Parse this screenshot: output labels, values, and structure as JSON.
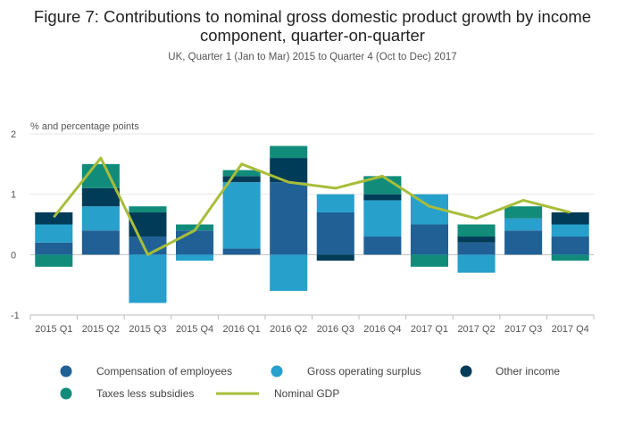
{
  "chart_data": {
    "type": "bar",
    "title": "Figure 7: Contributions to nominal gross domestic product growth by income component, quarter-on-quarter",
    "subtitle": "UK, Quarter 1 (Jan to Mar) 2015 to Quarter 4 (Oct to Dec) 2017",
    "ylabel": "% and percentage points",
    "ylim": [
      -1,
      2
    ],
    "yticks": [
      "2",
      "1",
      "0",
      "-1"
    ],
    "grid": true,
    "legend_position": "bottom",
    "categories": [
      "2015 Q1",
      "2015 Q2",
      "2015 Q3",
      "2015 Q4",
      "2016 Q1",
      "2016 Q2",
      "2016 Q3",
      "2016 Q4",
      "2017 Q1",
      "2017 Q2",
      "2017 Q3",
      "2017 Q4"
    ],
    "series": [
      {
        "name": "Compensation of employees",
        "type": "bar",
        "color": "#206095",
        "values": [
          0.2,
          0.4,
          0.3,
          0.4,
          0.1,
          1.2,
          0.7,
          0.3,
          0.5,
          0.2,
          0.4,
          0.3
        ]
      },
      {
        "name": "Gross operating surplus",
        "type": "bar",
        "color": "#27a0cc",
        "values": [
          0.3,
          0.4,
          -0.8,
          -0.1,
          1.1,
          -0.6,
          0.3,
          0.6,
          0.5,
          -0.3,
          0.2,
          0.2
        ]
      },
      {
        "name": "Other income",
        "type": "bar",
        "color": "#003c57",
        "values": [
          0.2,
          0.3,
          0.4,
          0.0,
          0.1,
          0.4,
          -0.1,
          0.1,
          0.0,
          0.1,
          0.0,
          0.2
        ]
      },
      {
        "name": "Taxes less subsidies",
        "type": "bar",
        "color": "#118c7b",
        "values": [
          -0.2,
          0.4,
          0.1,
          0.1,
          0.1,
          0.2,
          0.0,
          0.3,
          -0.2,
          0.2,
          0.2,
          -0.1
        ]
      },
      {
        "name": "Nominal GDP",
        "type": "line",
        "color": "#a8bd3a",
        "values": [
          0.62,
          1.6,
          0.0,
          0.4,
          1.5,
          1.2,
          1.1,
          1.3,
          0.8,
          0.6,
          0.9,
          0.7
        ]
      }
    ]
  }
}
